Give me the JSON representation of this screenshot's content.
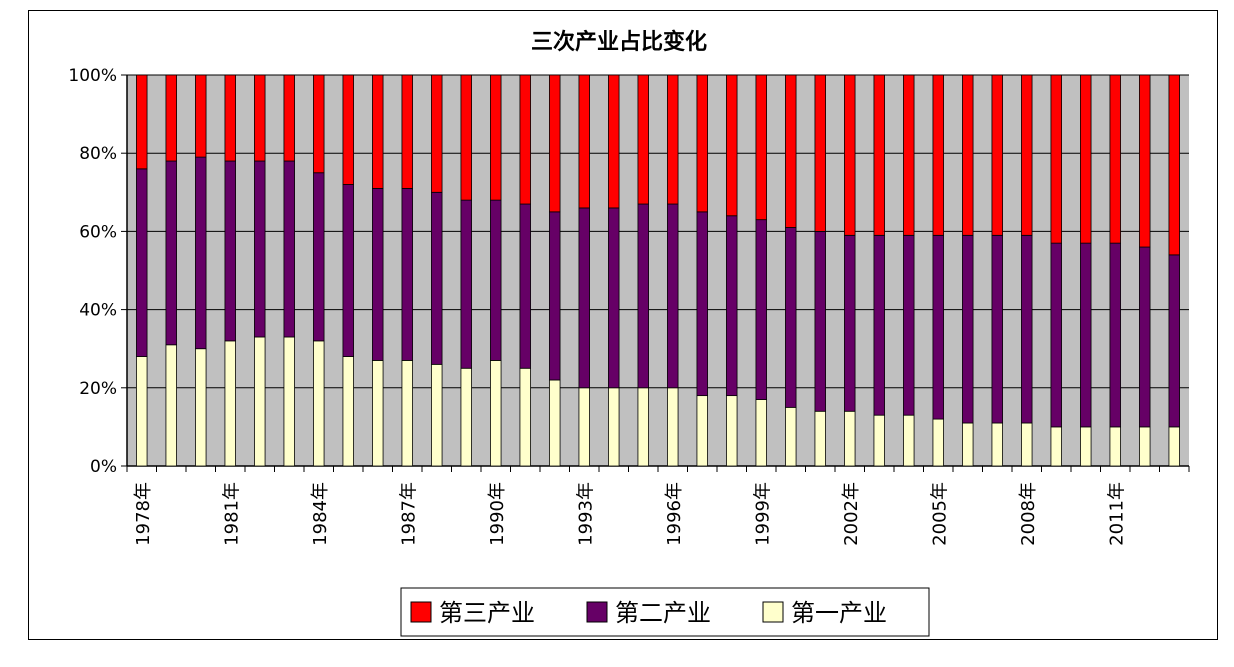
{
  "chart_data": {
    "type": "bar",
    "stacked": true,
    "normalized": true,
    "title": "三次产业占比变化",
    "categories": [
      "1978年",
      "1979年",
      "1980年",
      "1981年",
      "1982年",
      "1983年",
      "1984年",
      "1985年",
      "1986年",
      "1987年",
      "1988年",
      "1989年",
      "1990年",
      "1991年",
      "1992年",
      "1993年",
      "1994年",
      "1995年",
      "1996年",
      "1997年",
      "1998年",
      "1999年",
      "2000年",
      "2001年",
      "2002年",
      "2003年",
      "2004年",
      "2005年",
      "2006年",
      "2007年",
      "2008年",
      "2009年",
      "2010年",
      "2011年",
      "2012年",
      "2013年"
    ],
    "x_tick_labels": [
      "1978年",
      "1981年",
      "1984年",
      "1987年",
      "1990年",
      "1993年",
      "1996年",
      "1999年",
      "2002年",
      "2005年",
      "2008年",
      "2011年"
    ],
    "y_tick_labels": [
      "0%",
      "20%",
      "40%",
      "60%",
      "80%",
      "100%"
    ],
    "ylim": [
      0,
      100
    ],
    "grid": true,
    "legend_position": "bottom",
    "series": [
      {
        "name": "第一产业",
        "color": "#ffffcc",
        "values": [
          28,
          31,
          30,
          32,
          33,
          33,
          32,
          28,
          27,
          27,
          26,
          25,
          27,
          25,
          22,
          20,
          20,
          20,
          20,
          18,
          18,
          17,
          15,
          14,
          14,
          13,
          13,
          12,
          11,
          11,
          11,
          10,
          10,
          10,
          10,
          10
        ]
      },
      {
        "name": "第二产业",
        "color": "#660066",
        "values": [
          48,
          47,
          49,
          46,
          45,
          45,
          43,
          44,
          44,
          44,
          44,
          43,
          41,
          42,
          43,
          46,
          46,
          47,
          47,
          47,
          46,
          46,
          46,
          46,
          45,
          46,
          46,
          47,
          48,
          48,
          48,
          47,
          47,
          47,
          46,
          44
        ]
      },
      {
        "name": "第三产业",
        "color": "#ff0000",
        "values": [
          24,
          22,
          21,
          22,
          22,
          22,
          25,
          28,
          29,
          29,
          30,
          32,
          32,
          33,
          35,
          34,
          34,
          33,
          33,
          35,
          36,
          37,
          39,
          40,
          41,
          41,
          41,
          41,
          41,
          41,
          41,
          43,
          43,
          43,
          44,
          46
        ]
      }
    ],
    "legend_order": [
      "第三产业",
      "第二产业",
      "第一产业"
    ]
  },
  "colors": {
    "plot_background": "#c0c0c0",
    "gridline": "#000000"
  }
}
